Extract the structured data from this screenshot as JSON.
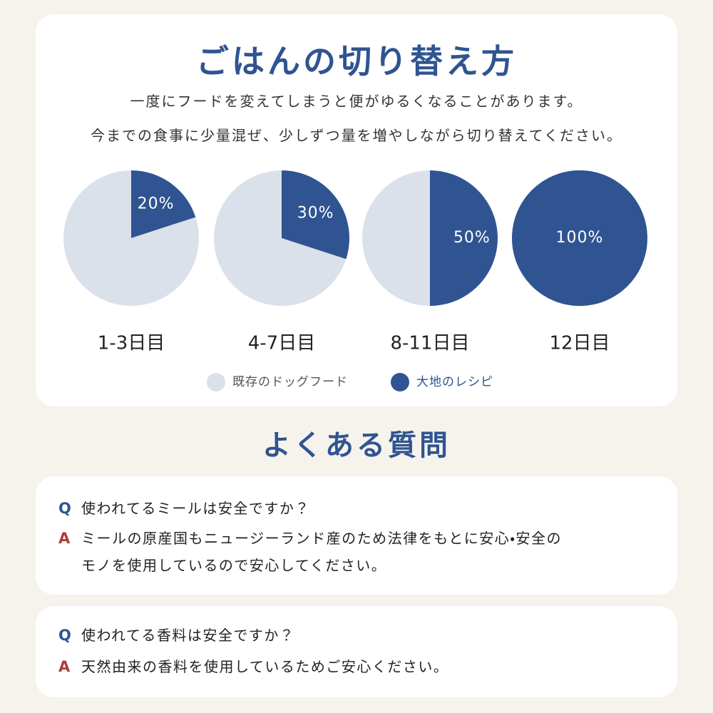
{
  "header": {
    "title": "ごはんの切り替え方",
    "lines": [
      "一度にフードを変えてしまうと便がゆるくなることがあります。",
      "今までの食事に少量混ぜ、少しずつ量を増やしながら切り替えてください。"
    ]
  },
  "chart_data": [
    {
      "type": "pie",
      "title": "1-3日目",
      "categories": [
        "既存のドッグフード",
        "大地のレシピ"
      ],
      "values": [
        80,
        20
      ],
      "value_labels": [
        null,
        "20%"
      ],
      "colors": [
        "#dbe1ea",
        "#2f5491"
      ]
    },
    {
      "type": "pie",
      "title": "4-7日目",
      "categories": [
        "既存のドッグフード",
        "大地のレシピ"
      ],
      "values": [
        70,
        30
      ],
      "value_labels": [
        null,
        "30%"
      ],
      "colors": [
        "#dbe1ea",
        "#2f5491"
      ]
    },
    {
      "type": "pie",
      "title": "8-11日目",
      "categories": [
        "既存のドッグフード",
        "大地のレシピ"
      ],
      "values": [
        50,
        50
      ],
      "value_labels": [
        null,
        "50%"
      ],
      "colors": [
        "#dbe1ea",
        "#2f5491"
      ]
    },
    {
      "type": "pie",
      "title": "12日目",
      "categories": [
        "既存のドッグフード",
        "大地のレシピ"
      ],
      "values": [
        0,
        100
      ],
      "value_labels": [
        null,
        "100%"
      ],
      "colors": [
        "#dbe1ea",
        "#2f5491"
      ]
    }
  ],
  "faq": {
    "title": "よくある質問",
    "items": [
      {
        "q_mark": "Q",
        "question": "使われてるミールは安全ですか？",
        "a_mark": "A",
        "answer": [
          "ミールの原産国もニュージーランド産のため法律をもとに安心・安全の",
          "モノを使用しているので安心してください。"
        ]
      },
      {
        "q_mark": "Q",
        "question": "使われてる香料は安全ですか？",
        "a_mark": "A",
        "answer": [
          "天然由来の香料を使用しているためご安心ください。"
        ]
      }
    ]
  }
}
